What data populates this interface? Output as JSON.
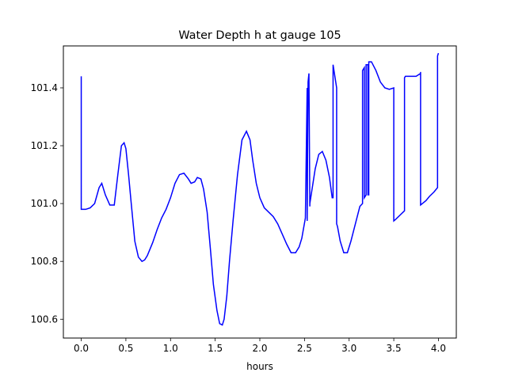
{
  "chart_data": {
    "type": "line",
    "title": "Water Depth h at gauge 105",
    "xlabel": "hours",
    "ylabel": "",
    "xlim": [
      -0.2,
      4.2
    ],
    "ylim": [
      100.535,
      101.545
    ],
    "x_ticks": [
      0.0,
      0.5,
      1.0,
      1.5,
      2.0,
      2.5,
      3.0,
      3.5,
      4.0
    ],
    "x_tick_labels": [
      "0.0",
      "0.5",
      "1.0",
      "1.5",
      "2.0",
      "2.5",
      "3.0",
      "3.5",
      "4.0"
    ],
    "y_ticks": [
      100.6,
      100.8,
      101.0,
      101.2,
      101.4
    ],
    "y_tick_labels": [
      "100.6",
      "100.8",
      "101.0",
      "101.2",
      "101.4"
    ],
    "grid": false,
    "legend": "none",
    "line_color": "#0000ff",
    "series": [
      {
        "x": [
          0.0,
          0.0,
          0.05,
          0.1,
          0.15,
          0.2,
          0.23,
          0.27,
          0.32,
          0.37,
          0.41,
          0.45,
          0.48,
          0.5,
          0.53,
          0.56,
          0.6,
          0.64,
          0.68,
          0.71,
          0.74,
          0.8,
          0.85,
          0.9,
          0.95,
          1.0,
          1.05,
          1.1,
          1.15,
          1.2,
          1.23,
          1.27,
          1.3,
          1.34,
          1.37,
          1.41,
          1.45,
          1.48,
          1.52,
          1.55,
          1.58,
          1.6,
          1.63,
          1.66,
          1.7,
          1.75,
          1.8,
          1.85,
          1.89,
          1.92,
          1.96,
          2.0,
          2.05,
          2.1,
          2.15,
          2.2,
          2.25,
          2.3,
          2.35,
          2.4,
          2.44,
          2.47,
          2.51,
          2.53,
          2.53,
          2.54,
          2.55,
          2.55,
          2.56,
          2.56,
          2.58,
          2.62,
          2.66,
          2.7,
          2.74,
          2.78,
          2.81,
          2.82,
          2.82,
          2.86,
          2.86,
          2.87,
          2.9,
          2.94,
          2.98,
          3.02,
          3.07,
          3.12,
          3.15,
          3.15,
          3.17,
          3.17,
          3.19,
          3.19,
          3.21,
          3.21,
          3.22,
          3.22,
          3.23,
          3.23,
          3.25,
          3.3,
          3.35,
          3.4,
          3.45,
          3.5,
          3.5,
          3.52,
          3.57,
          3.62,
          3.62,
          3.63,
          3.7,
          3.75,
          3.8,
          3.8,
          3.8,
          3.86,
          3.9,
          3.95,
          3.99,
          3.99,
          4.0
        ],
        "y": [
          101.44,
          100.98,
          100.98,
          100.985,
          101.0,
          101.055,
          101.07,
          101.03,
          100.995,
          100.995,
          101.1,
          101.2,
          101.21,
          101.19,
          101.1,
          101.0,
          100.87,
          100.815,
          100.8,
          100.805,
          100.82,
          100.865,
          100.91,
          100.95,
          100.98,
          101.02,
          101.07,
          101.1,
          101.105,
          101.085,
          101.07,
          101.075,
          101.09,
          101.085,
          101.05,
          100.97,
          100.83,
          100.72,
          100.63,
          100.585,
          100.58,
          100.6,
          100.68,
          100.8,
          100.94,
          101.1,
          101.22,
          101.25,
          101.22,
          101.15,
          101.07,
          101.02,
          100.985,
          100.97,
          100.955,
          100.93,
          100.895,
          100.86,
          100.83,
          100.83,
          100.85,
          100.88,
          100.95,
          101.4,
          100.94,
          101.42,
          101.45,
          101.44,
          100.99,
          101.0,
          101.04,
          101.12,
          101.17,
          101.18,
          101.15,
          101.09,
          101.02,
          101.02,
          101.48,
          101.4,
          100.93,
          100.92,
          100.87,
          100.83,
          100.83,
          100.87,
          100.93,
          100.99,
          101.0,
          101.46,
          101.47,
          101.02,
          101.03,
          101.48,
          101.48,
          101.03,
          101.03,
          101.49,
          101.49,
          101.49,
          101.49,
          101.46,
          101.42,
          101.4,
          101.395,
          101.4,
          100.94,
          100.945,
          100.96,
          100.975,
          101.435,
          101.44,
          101.44,
          101.44,
          101.45,
          101.455,
          100.995,
          101.01,
          101.025,
          101.04,
          101.055,
          101.51,
          101.52
        ]
      }
    ]
  }
}
